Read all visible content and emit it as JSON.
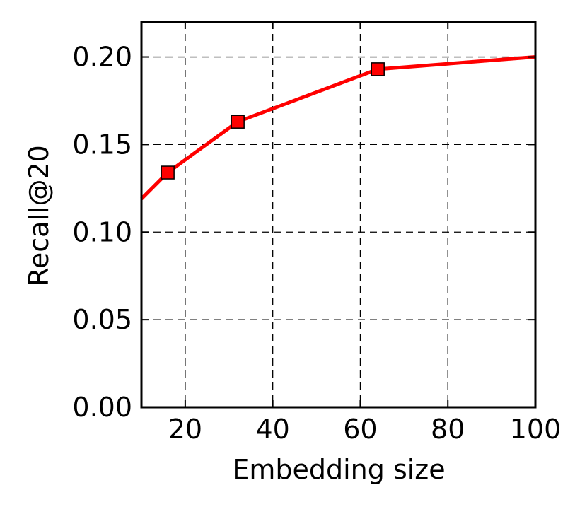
{
  "chart_data": {
    "type": "line",
    "title": "",
    "xlabel": "Embedding size",
    "ylabel": "Recall@20",
    "xlim": [
      10,
      100
    ],
    "ylim": [
      0.0,
      0.22
    ],
    "xticks": [
      20,
      40,
      60,
      80,
      100
    ],
    "xtick_labels": [
      "20",
      "40",
      "60",
      "80",
      "100"
    ],
    "yticks": [
      0.0,
      0.05,
      0.1,
      0.15,
      0.2
    ],
    "ytick_labels": [
      "0.00",
      "0.05",
      "0.10",
      "0.15",
      "0.20"
    ],
    "grid": true,
    "legend": "none",
    "series": [
      {
        "x": [
          10,
          16,
          32,
          64,
          100
        ],
        "y": [
          0.119,
          0.134,
          0.163,
          0.193,
          0.2
        ],
        "marker_x": [
          16,
          32,
          64
        ],
        "marker_y": [
          0.134,
          0.163,
          0.193
        ],
        "color": "#ff0000",
        "marker": "square"
      }
    ]
  }
}
